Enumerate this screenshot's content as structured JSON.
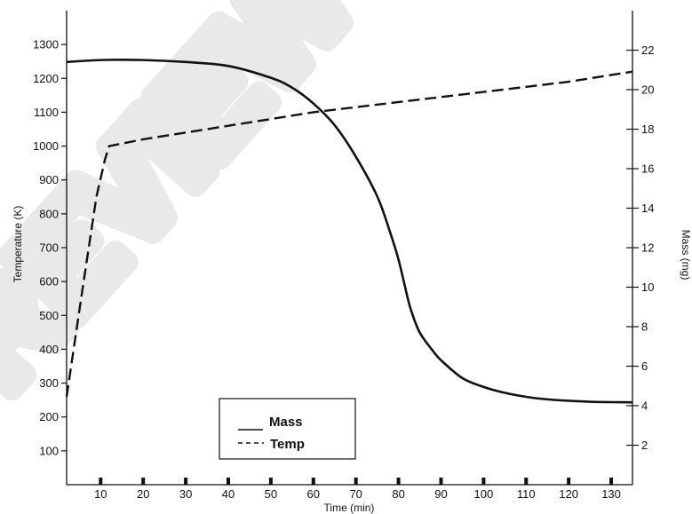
{
  "watermark": "PREVIEW",
  "chart_data": {
    "type": "line",
    "xlabel": "Time (min)",
    "ylabel_left": "Temperature (K)",
    "ylabel_right": "Mass (mg)",
    "xlim": [
      2,
      135
    ],
    "ylim_left": [
      0,
      1400
    ],
    "ylim_right": [
      0,
      24
    ],
    "x_ticks": [
      10,
      20,
      30,
      40,
      50,
      60,
      70,
      80,
      90,
      100,
      110,
      120,
      130
    ],
    "y_left_ticks": [
      100,
      200,
      300,
      400,
      500,
      600,
      700,
      800,
      900,
      1000,
      1100,
      1200,
      1300
    ],
    "y_right_ticks": [
      2,
      4,
      6,
      8,
      10,
      12,
      14,
      16,
      18,
      20,
      22
    ],
    "grid": false,
    "legend_position": "bottom-center",
    "series": [
      {
        "name": "Mass",
        "axis": "right",
        "style": "solid",
        "color": "#111111",
        "x": [
          2,
          10,
          20,
          30,
          40,
          50,
          55,
          60,
          65,
          70,
          75,
          78,
          80,
          82,
          83,
          85,
          88,
          90,
          95,
          100,
          105,
          110,
          115,
          120,
          125,
          130,
          135
        ],
        "y": [
          21.4,
          21.5,
          21.5,
          21.4,
          21.2,
          20.6,
          20.1,
          19.3,
          18.2,
          16.6,
          14.6,
          12.8,
          11.4,
          9.6,
          8.8,
          7.7,
          6.8,
          6.3,
          5.4,
          4.95,
          4.65,
          4.45,
          4.32,
          4.25,
          4.2,
          4.18,
          4.17
        ]
      },
      {
        "name": "Temp",
        "axis": "left",
        "style": "dashed",
        "color": "#111111",
        "x": [
          2,
          6,
          9,
          11,
          12,
          20,
          40,
          60,
          80,
          100,
          120,
          135
        ],
        "y": [
          260,
          600,
          850,
          960,
          1000,
          1020,
          1060,
          1100,
          1130,
          1160,
          1190,
          1220
        ]
      }
    ]
  }
}
